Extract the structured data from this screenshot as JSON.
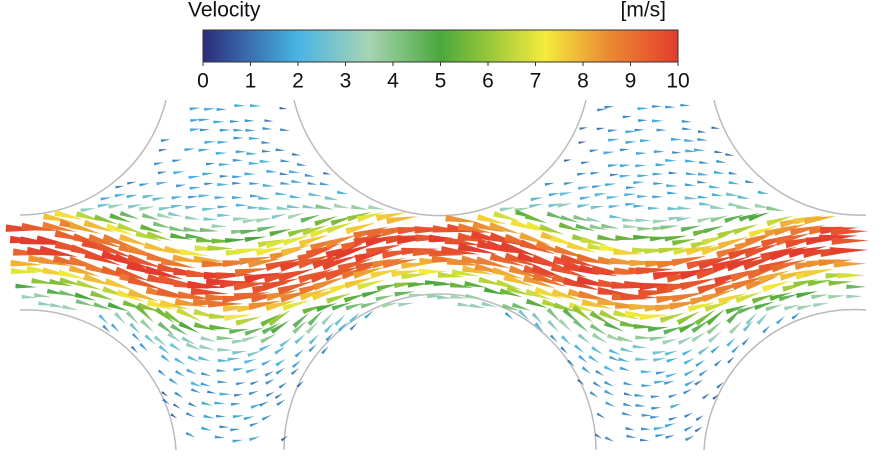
{
  "chart_data": {
    "type": "vector-field",
    "title": "Velocity",
    "unit_label": "[m/s]",
    "clim": [
      0,
      10
    ],
    "ticks": [
      0,
      1,
      2,
      3,
      4,
      5,
      6,
      7,
      8,
      9,
      10
    ],
    "colormap": [
      {
        "value": 0,
        "color": "#2c2c7c"
      },
      {
        "value": 2,
        "color": "#48b4e4"
      },
      {
        "value": 3.5,
        "color": "#a8d4b4"
      },
      {
        "value": 5,
        "color": "#4aa83c"
      },
      {
        "value": 7.2,
        "color": "#f4ec3c"
      },
      {
        "value": 8.5,
        "color": "#ec8c34"
      },
      {
        "value": 10,
        "color": "#e43c2c"
      }
    ]
  }
}
